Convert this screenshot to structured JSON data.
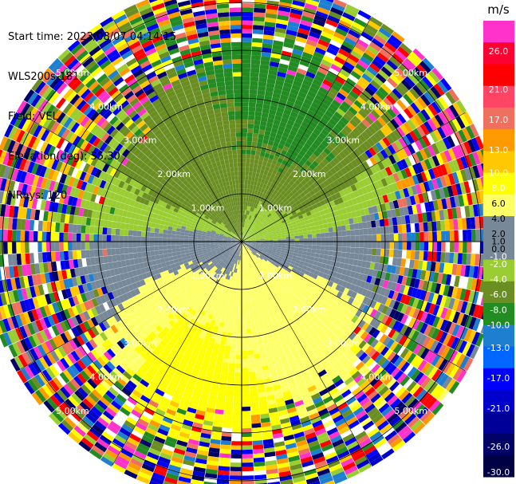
{
  "info": {
    "start_time": "Start time: 2023/08/07 04:14:15",
    "instrument": "WLS200s-181",
    "field": "Field: VEL",
    "elevation": "Elevation(deg): 35.30",
    "nrays": "NRays: 120"
  },
  "chart_data": {
    "type": "ppi",
    "field": "VEL",
    "nrays": 120,
    "range_rings_km": [
      1,
      2,
      3,
      4,
      5
    ],
    "ring_labels": [
      "1.00km",
      "2.00km",
      "3.00km",
      "4.00km",
      "5.00km"
    ],
    "max_range_km": 5.4,
    "colorbar": {
      "unit": "m/s",
      "vmin": -30.0,
      "vmax": 30.0,
      "ticks": [
        {
          "value": 26,
          "label": "26.0"
        },
        {
          "value": 21,
          "label": "21.0"
        },
        {
          "value": 17,
          "label": "17.0"
        },
        {
          "value": 13,
          "label": "13.0"
        },
        {
          "value": 10,
          "label": "10.0"
        },
        {
          "value": 8,
          "label": "8.0"
        },
        {
          "value": 6,
          "label": "6.0"
        },
        {
          "value": 4,
          "label": "4.0"
        },
        {
          "value": 2,
          "label": "2.0"
        },
        {
          "value": 1,
          "label": "1.0"
        },
        {
          "value": 0,
          "label": "0.0"
        },
        {
          "value": -1,
          "label": "-1.0"
        },
        {
          "value": -2,
          "label": "-2.0"
        },
        {
          "value": -4,
          "label": "-4.0"
        },
        {
          "value": -6,
          "label": "-6.0"
        },
        {
          "value": -8,
          "label": "-8.0"
        },
        {
          "value": -10,
          "label": "-10.0"
        },
        {
          "value": -13,
          "label": "-13.0"
        },
        {
          "value": -17,
          "label": "-17.0"
        },
        {
          "value": -21,
          "label": "-21.0"
        },
        {
          "value": -26,
          "label": "-26.0"
        },
        {
          "value": -30,
          "label": "-30.0"
        }
      ],
      "colors": [
        "#FF33CC",
        "#FF0033",
        "#FF0000",
        "#FF4466",
        "#F07060",
        "#FF9900",
        "#FFC800",
        "#FFFF00",
        "#FFFF66",
        "#778899",
        "#778899",
        "#9ACD32",
        "#6B8E23",
        "#228B22",
        "#1E7FD0",
        "#0066FF",
        "#0000FF",
        "#0000CC",
        "#000099",
        "#000066",
        "#000044"
      ]
    },
    "wind_pattern": {
      "description": "dipole velocity field",
      "toward_direction": "north-west",
      "away_direction": "south",
      "peak_speed_ms": 8
    }
  }
}
